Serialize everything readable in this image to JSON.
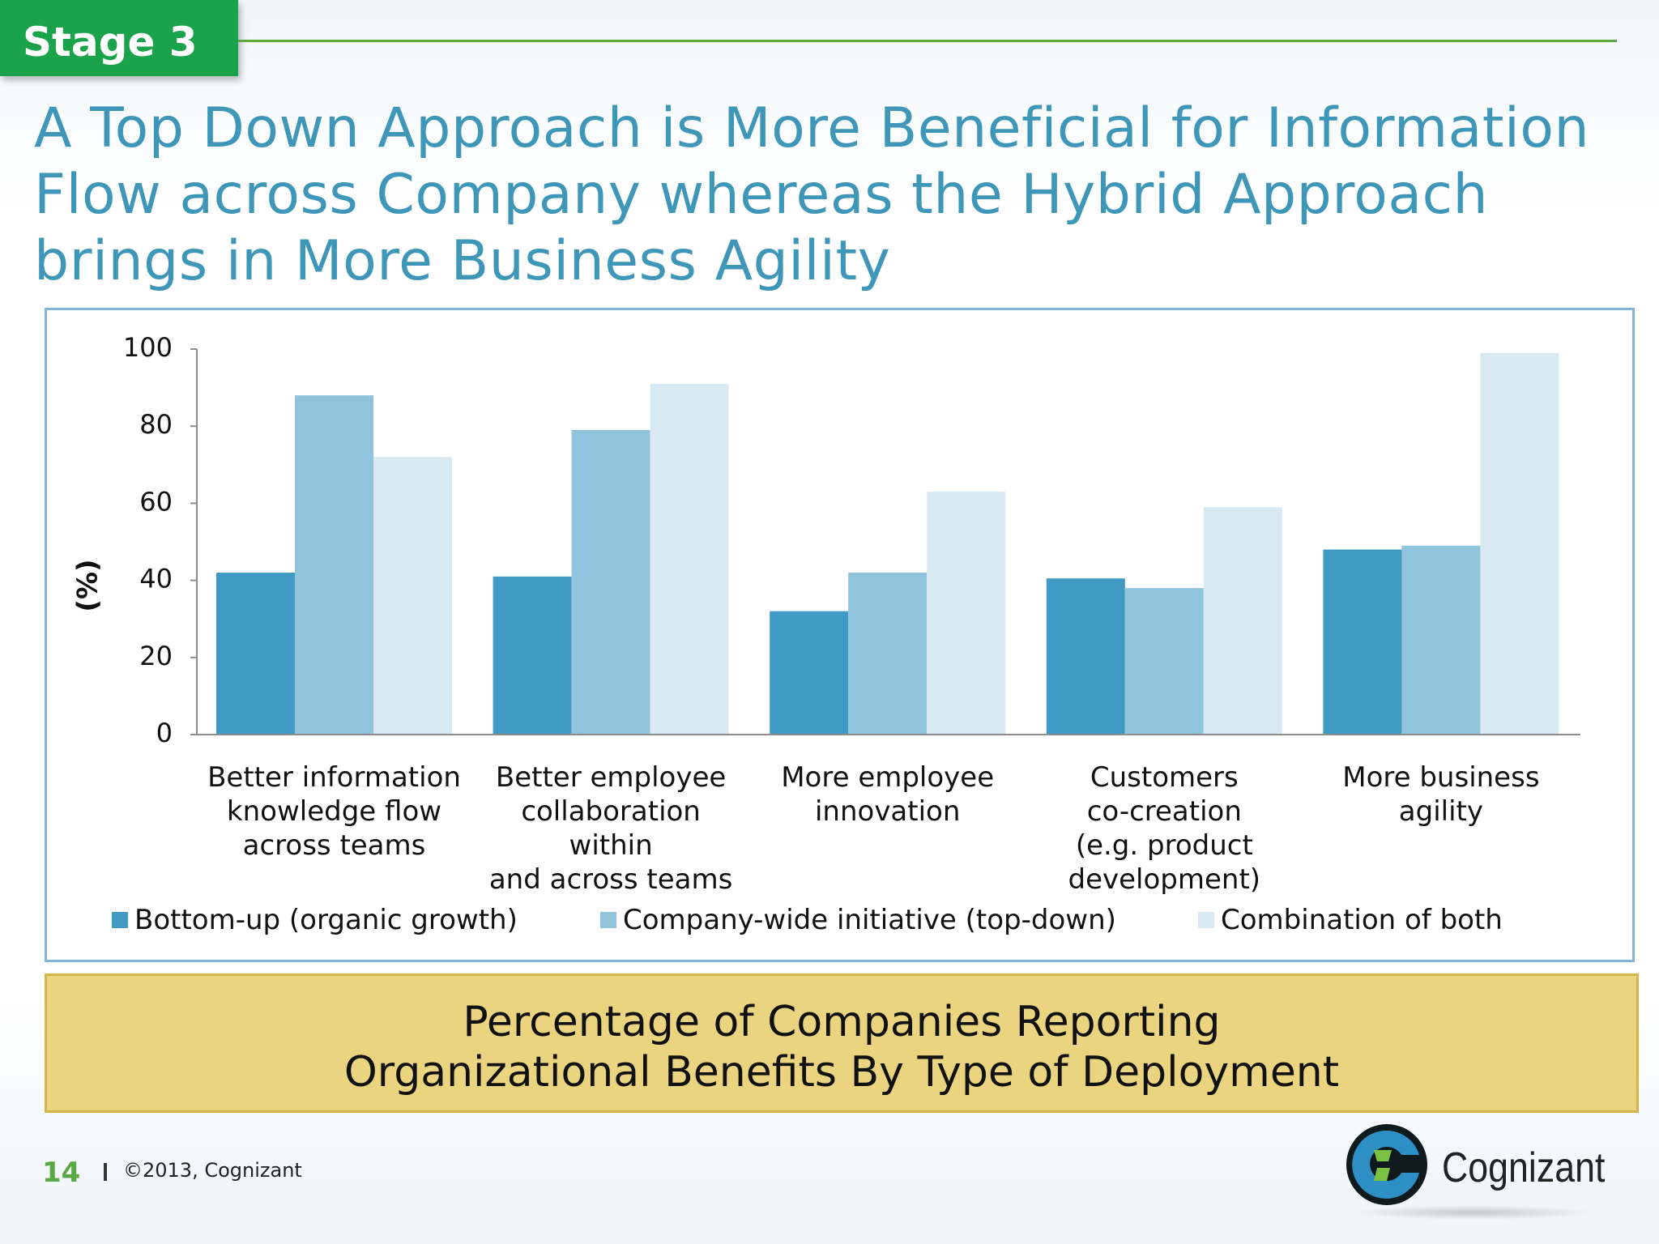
{
  "header": {
    "stage_label": "Stage 3",
    "title_lines": [
      "A Top Down Approach is More Beneficial for Information",
      "Flow across Company whereas the Hybrid Approach",
      "brings in More Business Agility"
    ]
  },
  "colors": {
    "stage_green": "#1aa34a",
    "title_blue": "#3e97b8",
    "series": [
      "#419ac3",
      "#8fc4dc",
      "#d8e9f2"
    ],
    "caption_bg": "#ebd47f"
  },
  "chart_data": {
    "type": "bar",
    "ylabel": "(%)",
    "ylim": [
      0,
      100
    ],
    "yticks": [
      0,
      20,
      40,
      60,
      80,
      100
    ],
    "grid": false,
    "legend_position": "bottom",
    "categories": [
      [
        "Better information",
        "knowledge flow",
        "across teams"
      ],
      [
        "Better employee",
        "collaboration within",
        "and across teams"
      ],
      [
        "More employee",
        "innovation"
      ],
      [
        "Customers",
        "co-creation",
        "(e.g. product",
        "development)"
      ],
      [
        "More business",
        "agility"
      ]
    ],
    "series": [
      {
        "name": "Bottom-up (organic growth)",
        "values": [
          42,
          41,
          32,
          40.5,
          48
        ]
      },
      {
        "name": "Company-wide initiative (top-down)",
        "values": [
          88,
          79,
          42,
          38,
          49
        ]
      },
      {
        "name": "Combination of both",
        "values": [
          72,
          91,
          63,
          59,
          99
        ]
      }
    ]
  },
  "caption": {
    "lines": [
      "Percentage of Companies Reporting",
      "Organizational Benefits By Type of Deployment"
    ]
  },
  "footer": {
    "page_number": "14",
    "copyright": "©2013, Cognizant",
    "logo_text": "Cognizant"
  }
}
